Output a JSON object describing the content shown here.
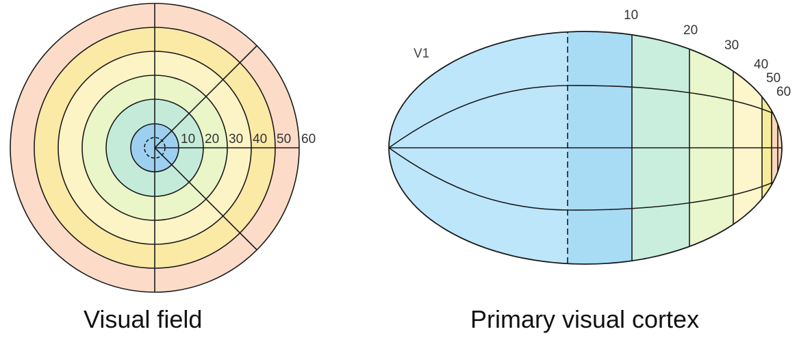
{
  "visual_field": {
    "caption": "Visual field",
    "ring_labels": [
      "10",
      "20",
      "30",
      "40",
      "50",
      "60"
    ]
  },
  "cortex": {
    "caption": "Primary visual cortex",
    "area_label": "V1",
    "eccentricity_labels": [
      "10",
      "20",
      "30",
      "40",
      "50",
      "60"
    ]
  },
  "colors": {
    "fovea": "#9dd0f0",
    "ring_10": "#b9e6f8",
    "ring_20": "#c4ebda",
    "ring_30": "#eaf5c8",
    "ring_40": "#fdf4c5",
    "ring_50": "#fbe9a6",
    "ring_60": "#fcdcc8",
    "cortex_fovea": "#bde6fb",
    "cortex_10": "#a8dcf5",
    "cortex_20": "#c9eede",
    "cortex_30": "#eaf6cb",
    "cortex_40": "#fdf6cc",
    "cortex_50": "#f6ec9a",
    "cortex_60": "#fcd7bc",
    "stroke": "#1a1a1a"
  }
}
